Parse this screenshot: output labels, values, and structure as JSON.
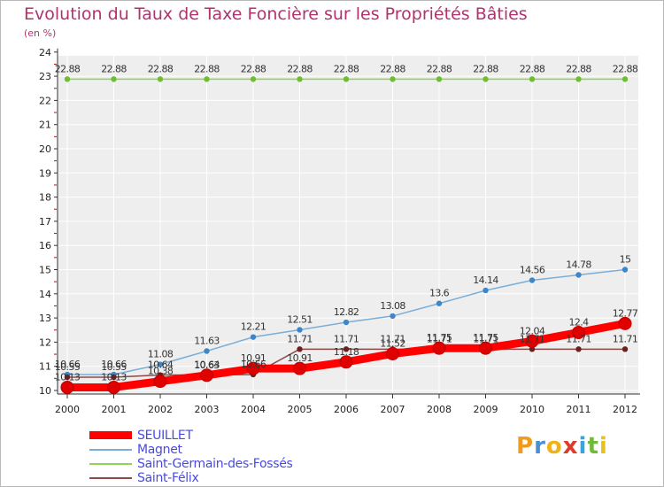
{
  "title": "Evolution du Taux de Taxe Foncière sur les Propriétés Bâties",
  "unit": "(en %)",
  "logo": "Proxiti",
  "colors": {
    "title": "#b0336e",
    "axis": "#333333",
    "grid": "#ffffff",
    "tick_mark": "#cc0000",
    "legend_text": "#4a4adf"
  },
  "chart_data": {
    "type": "line",
    "title": "Evolution du Taux de Taxe Foncière sur les Propriétés Bâties",
    "ylabel": "(en %)",
    "xlabel": "",
    "ylim": [
      10,
      24
    ],
    "yticks": [
      "10",
      "11",
      "12",
      "13",
      "14",
      "15",
      "16",
      "17",
      "18",
      "19",
      "20",
      "21",
      "22",
      "23",
      "24"
    ],
    "categories": [
      "2000",
      "2001",
      "2002",
      "2003",
      "2004",
      "2005",
      "2006",
      "2007",
      "2008",
      "2009",
      "2010",
      "2011",
      "2012"
    ],
    "series": [
      {
        "name": "Saint-Germain-des-Fossés",
        "color": "#8fd45a",
        "marker": "#6cbf2f",
        "width": 1.5,
        "values": [
          22.88,
          22.88,
          22.88,
          22.88,
          22.88,
          22.88,
          22.88,
          22.88,
          22.88,
          22.88,
          22.88,
          22.88,
          22.88
        ],
        "labels": [
          "22.88",
          "22.88",
          "22.88",
          "22.88",
          "22.88",
          "22.88",
          "22.88",
          "22.88",
          "22.88",
          "22.88",
          "22.88",
          "22.88",
          "22.88"
        ]
      },
      {
        "name": "Magnet",
        "color": "#7aaed8",
        "marker": "#3f86c9",
        "width": 1.5,
        "values": [
          10.66,
          10.66,
          11.08,
          11.63,
          12.21,
          12.51,
          12.82,
          13.08,
          13.6,
          14.14,
          14.56,
          14.78,
          15
        ],
        "labels": [
          "10.66",
          "10.66",
          "11.08",
          "11.63",
          "12.21",
          "12.51",
          "12.82",
          "13.08",
          "13.6",
          "14.14",
          "14.56",
          "14.78",
          "15"
        ]
      },
      {
        "name": "Saint-Félix",
        "color": "#8a4a4a",
        "marker": "#6b2020",
        "width": 1.5,
        "values": [
          10.55,
          10.55,
          10.64,
          10.64,
          10.66,
          11.71,
          11.71,
          11.71,
          11.71,
          11.71,
          11.71,
          11.71,
          11.71
        ],
        "labels": [
          "10.55",
          "10.55",
          "10.64",
          "10.64",
          "10.66",
          "11.71",
          "11.71",
          "11.71",
          "11.71",
          "11.71",
          "11.71",
          "11.71",
          "11.71"
        ]
      },
      {
        "name": "SEUILLET",
        "color": "#ff0000",
        "marker": "#e00000",
        "width": 9,
        "values": [
          10.13,
          10.13,
          10.38,
          10.63,
          10.91,
          10.91,
          11.18,
          11.52,
          11.75,
          11.75,
          12.04,
          12.4,
          12.77
        ],
        "labels": [
          "10.13",
          "10.13",
          "10.38",
          "10.63",
          "10.91",
          "10.91",
          "11.18",
          "11.52",
          "11.75",
          "11.75",
          "12.04",
          "12.4",
          "12.77"
        ]
      }
    ],
    "legend_order": [
      "SEUILLET",
      "Magnet",
      "Saint-Germain-des-Fossés",
      "Saint-Félix"
    ],
    "legend": "bottom-left"
  },
  "legend_items": [
    {
      "label": "SEUILLET",
      "color": "#ff0000"
    },
    {
      "label": "Magnet",
      "color": "#7aaed8"
    },
    {
      "label": "Saint-Germain-des-Fossés",
      "color": "#8fd45a"
    },
    {
      "label": "Saint-Félix",
      "color": "#8a4a4a"
    }
  ]
}
